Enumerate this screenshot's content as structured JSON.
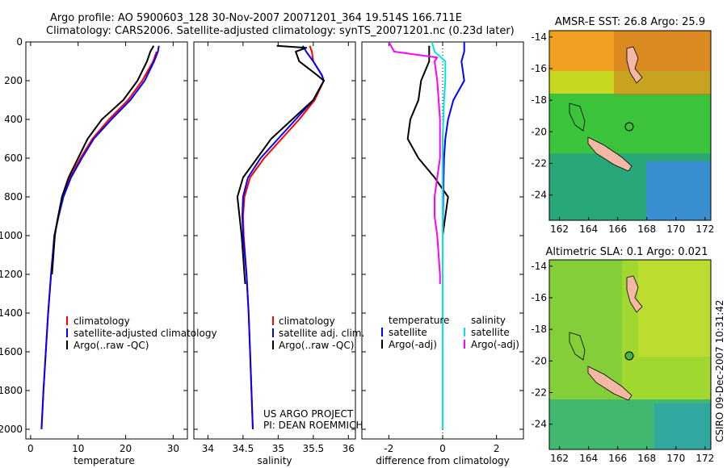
{
  "title_line1": "Argo profile: AO 5900603_128 30-Nov-2007 20071201_364 19.514S 166.711E",
  "title_line2": "Climatology: CARS2006. Satellite-adjusted climatology: synTS_20071201.nc (0.23d later)",
  "colors": {
    "climatology": "#ff0000",
    "satellite": "#0000ff",
    "argo": "#000000",
    "sat_salinity": "#00e5e5",
    "argo_salinity": "#ff00ff",
    "land": "#f4b8a4"
  },
  "depth_ticks": [
    0,
    200,
    400,
    600,
    800,
    1000,
    1200,
    1400,
    1600,
    1800,
    2000
  ],
  "depth_tick_labels": [
    "0",
    "200",
    "400",
    "600",
    "800",
    "1000",
    "1200",
    "1400",
    "1600",
    "1800",
    "2000"
  ],
  "chart_data": [
    {
      "type": "line",
      "xlabel": "temperature",
      "ylabel": "",
      "xlim": [
        -1,
        33
      ],
      "ylim": [
        2050,
        0
      ],
      "xticks": [
        0,
        10,
        20,
        30
      ],
      "xtick_labels": [
        "0",
        "10",
        "20",
        "30"
      ],
      "legend_labels": [
        "climatology",
        "satellite-adjusted climatology",
        "Argo(..raw -QC)"
      ],
      "series": [
        {
          "name": "climatology",
          "color_key": "climatology",
          "points": [
            [
              26.5,
              50
            ],
            [
              25.8,
              100
            ],
            [
              23.5,
              200
            ],
            [
              20.5,
              300
            ],
            [
              16.5,
              400
            ],
            [
              13,
              500
            ],
            [
              10.5,
              600
            ],
            [
              8.3,
              700
            ],
            [
              6.8,
              800
            ],
            [
              5.8,
              900
            ],
            [
              5,
              1000
            ],
            [
              4.3,
              1200
            ],
            [
              3.7,
              1400
            ],
            [
              3.2,
              1600
            ],
            [
              2.7,
              1800
            ],
            [
              2.3,
              2000
            ]
          ]
        },
        {
          "name": "satellite-adjusted climatology",
          "color_key": "satellite",
          "points": [
            [
              27,
              20
            ],
            [
              26.8,
              50
            ],
            [
              26,
              100
            ],
            [
              24,
              200
            ],
            [
              21,
              300
            ],
            [
              17,
              400
            ],
            [
              13.3,
              500
            ],
            [
              10.8,
              600
            ],
            [
              8.5,
              700
            ],
            [
              6.9,
              800
            ],
            [
              5.9,
              900
            ],
            [
              5,
              1000
            ],
            [
              4.3,
              1200
            ],
            [
              3.7,
              1400
            ],
            [
              3.2,
              1600
            ],
            [
              2.7,
              1800
            ],
            [
              2.3,
              2000
            ]
          ]
        },
        {
          "name": "Argo(..raw -QC)",
          "color_key": "argo",
          "points": [
            [
              25.9,
              20
            ],
            [
              25.2,
              50
            ],
            [
              24.5,
              100
            ],
            [
              22.5,
              200
            ],
            [
              19.5,
              300
            ],
            [
              15,
              400
            ],
            [
              12,
              500
            ],
            [
              10,
              600
            ],
            [
              8,
              700
            ],
            [
              6.6,
              800
            ],
            [
              5.8,
              900
            ],
            [
              5.1,
              1000
            ],
            [
              4.5,
              1200
            ]
          ]
        }
      ]
    },
    {
      "type": "line",
      "xlabel": "salinity",
      "ylabel": "",
      "xlim": [
        33.8,
        36.1
      ],
      "ylim": [
        2050,
        0
      ],
      "xticks": [
        34,
        34.5,
        35,
        35.5,
        36
      ],
      "xtick_labels": [
        "34",
        "34.5",
        "35",
        "35.5",
        "36"
      ],
      "legend_labels": [
        "climatology",
        "satellite adj. clim.",
        "Argo(..raw -QC)"
      ],
      "annotation_line1": "US ARGO PROJECT",
      "annotation_line2": "PI: DEAN ROEMMICH",
      "series": [
        {
          "name": "climatology",
          "color_key": "climatology",
          "points": [
            [
              35.45,
              20
            ],
            [
              35.48,
              50
            ],
            [
              35.5,
              100
            ],
            [
              35.62,
              170
            ],
            [
              35.65,
              200
            ],
            [
              35.52,
              300
            ],
            [
              35.3,
              400
            ],
            [
              35.05,
              500
            ],
            [
              34.8,
              600
            ],
            [
              34.6,
              700
            ],
            [
              34.52,
              800
            ],
            [
              34.5,
              900
            ],
            [
              34.51,
              1000
            ],
            [
              34.55,
              1200
            ],
            [
              34.58,
              1400
            ],
            [
              34.6,
              1600
            ],
            [
              34.62,
              1800
            ],
            [
              34.64,
              2000
            ]
          ]
        },
        {
          "name": "satellite adj. clim.",
          "color_key": "satellite",
          "points": [
            [
              35.35,
              20
            ],
            [
              35.4,
              50
            ],
            [
              35.5,
              100
            ],
            [
              35.62,
              170
            ],
            [
              35.65,
              200
            ],
            [
              35.5,
              300
            ],
            [
              35.25,
              400
            ],
            [
              35.0,
              500
            ],
            [
              34.75,
              600
            ],
            [
              34.57,
              700
            ],
            [
              34.5,
              800
            ],
            [
              34.49,
              900
            ],
            [
              34.5,
              1000
            ],
            [
              34.55,
              1200
            ],
            [
              34.58,
              1400
            ],
            [
              34.6,
              1600
            ],
            [
              34.62,
              1800
            ],
            [
              34.64,
              2000
            ]
          ]
        },
        {
          "name": "Argo(..raw -QC)",
          "color_key": "argo",
          "points": [
            [
              34.98,
              20
            ],
            [
              35.4,
              30
            ],
            [
              35.25,
              50
            ],
            [
              35.3,
              100
            ],
            [
              35.55,
              170
            ],
            [
              35.65,
              200
            ],
            [
              35.5,
              300
            ],
            [
              35.2,
              400
            ],
            [
              34.9,
              500
            ],
            [
              34.7,
              600
            ],
            [
              34.5,
              700
            ],
            [
              34.42,
              800
            ],
            [
              34.45,
              900
            ],
            [
              34.48,
              1000
            ],
            [
              34.5,
              1100
            ],
            [
              34.52,
              1200
            ],
            [
              34.53,
              1250
            ]
          ]
        }
      ]
    },
    {
      "type": "line",
      "xlabel": "difference from climatology",
      "ylabel": "",
      "xlim": [
        -3,
        3
      ],
      "ylim": [
        2050,
        0
      ],
      "xticks": [
        -2,
        0,
        2
      ],
      "xtick_labels": [
        "-2",
        "0",
        "2"
      ],
      "legend_headers": [
        "temperature",
        "salinity"
      ],
      "legend_labels": [
        "satellite",
        "Argo(-adj)",
        "satellite",
        "Argo(-adj)"
      ],
      "series": [
        {
          "name": "satellite",
          "group": "temperature",
          "color_key": "satellite",
          "points": [
            [
              0.8,
              0
            ],
            [
              0.8,
              50
            ],
            [
              0.7,
              100
            ],
            [
              0.8,
              200
            ],
            [
              0.4,
              300
            ],
            [
              0.2,
              400
            ],
            [
              0.1,
              500
            ],
            [
              0.05,
              600
            ],
            [
              0.02,
              800
            ],
            [
              0,
              1000
            ],
            [
              0,
              1500
            ],
            [
              0,
              2000
            ]
          ]
        },
        {
          "name": "Argo(-adj)",
          "group": "temperature",
          "color_key": "argo",
          "points": [
            [
              -0.5,
              20
            ],
            [
              -0.5,
              100
            ],
            [
              -0.8,
              200
            ],
            [
              -0.9,
              300
            ],
            [
              -1.2,
              400
            ],
            [
              -1.3,
              500
            ],
            [
              -0.9,
              600
            ],
            [
              -0.3,
              700
            ],
            [
              0.2,
              800
            ],
            [
              0.1,
              900
            ],
            [
              0,
              1000
            ],
            [
              0,
              1100
            ]
          ]
        },
        {
          "name": "satellite",
          "group": "salinity",
          "color_key": "sat_salinity",
          "points": [
            [
              -0.4,
              0
            ],
            [
              -0.3,
              50
            ],
            [
              0.1,
              100
            ],
            [
              0.1,
              200
            ],
            [
              0.05,
              300
            ],
            [
              0,
              500
            ],
            [
              0,
              1000
            ],
            [
              0,
              1500
            ],
            [
              0,
              2000
            ]
          ]
        },
        {
          "name": "Argo(-adj)",
          "group": "salinity",
          "color_key": "argo_salinity",
          "points": [
            [
              -2,
              0
            ],
            [
              -1.8,
              50
            ],
            [
              -0.2,
              80
            ],
            [
              -0.3,
              100
            ],
            [
              -0.2,
              200
            ],
            [
              -0.1,
              400
            ],
            [
              -0.1,
              600
            ],
            [
              -0.2,
              700
            ],
            [
              -0.3,
              800
            ],
            [
              -0.3,
              900
            ],
            [
              -0.2,
              1000
            ],
            [
              -0.1,
              1200
            ],
            [
              -0.1,
              1250
            ]
          ]
        }
      ]
    },
    {
      "type": "heatmap",
      "title": "AMSR-E SST: 26.8 Argo: 25.9",
      "xlim": [
        161.3,
        172.4
      ],
      "ylim": [
        -25.6,
        -13.6
      ],
      "xticks": [
        162,
        164,
        166,
        168,
        170,
        172
      ],
      "xtick_labels": [
        "162",
        "164",
        "166",
        "168",
        "170",
        "172"
      ],
      "yticks": [
        -14,
        -16,
        -18,
        -20,
        -22,
        -24
      ],
      "ytick_labels": [
        "-14",
        "-16",
        "-18",
        "-20",
        "-22",
        "-24"
      ],
      "float_position": [
        166.7,
        -19.5
      ]
    },
    {
      "type": "heatmap",
      "title": "Altimetric SLA: 0.1 Argo: 0.021",
      "xlim": [
        161.3,
        172.4
      ],
      "ylim": [
        -25.6,
        -13.6
      ],
      "xticks": [
        162,
        164,
        166,
        168,
        170,
        172
      ],
      "xtick_labels": [
        "162",
        "164",
        "166",
        "168",
        "170",
        "172"
      ],
      "yticks": [
        -14,
        -16,
        -18,
        -20,
        -22,
        -24
      ],
      "ytick_labels": [
        "-14",
        "-16",
        "-18",
        "-20",
        "-22",
        "-24"
      ],
      "float_position": [
        166.7,
        -19.5
      ]
    }
  ],
  "credit": "CSIRO 09-Dec-2007 10:31:42"
}
